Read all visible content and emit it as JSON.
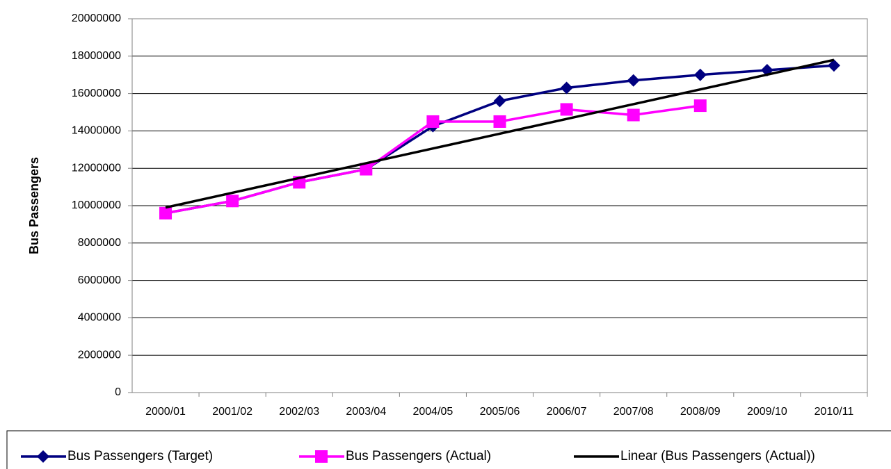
{
  "chart_data": {
    "type": "line",
    "y_label": "Bus Passengers",
    "categories": [
      "2000/01",
      "2001/02",
      "2002/03",
      "2003/04",
      "2004/05",
      "2005/06",
      "2006/07",
      "2007/08",
      "2008/09",
      "2009/10",
      "2010/11"
    ],
    "series": [
      {
        "name": "Bus Passengers (Target)",
        "color": "#000080",
        "marker": "diamond",
        "values": [
          9600000,
          10250000,
          11250000,
          11950000,
          14250000,
          15600000,
          16300000,
          16700000,
          17000000,
          17250000,
          17500000
        ]
      },
      {
        "name": "Bus Passengers (Actual)",
        "color": "#ff00ff",
        "marker": "square",
        "values": [
          9600000,
          10250000,
          11250000,
          11950000,
          14500000,
          14500000,
          15150000,
          14850000,
          15350000,
          null,
          null
        ]
      },
      {
        "name": "Linear (Bus Passengers (Actual))",
        "color": "#000000",
        "marker": "none",
        "values": [
          9900000,
          10690000,
          11480000,
          12270000,
          13060000,
          13850000,
          14640000,
          15430000,
          16220000,
          17010000,
          17800000
        ]
      }
    ],
    "ylim": [
      0,
      20000000
    ],
    "yticks": [
      0,
      2000000,
      4000000,
      6000000,
      8000000,
      10000000,
      12000000,
      14000000,
      16000000,
      18000000,
      20000000
    ],
    "grid": true,
    "legend": "bottom"
  }
}
